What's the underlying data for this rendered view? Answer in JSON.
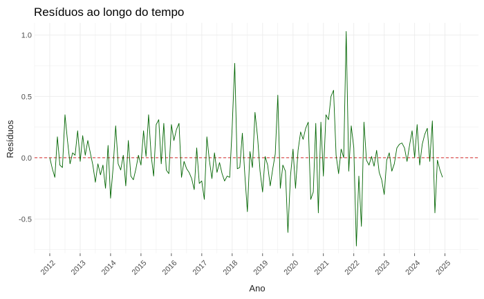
{
  "chart_data": {
    "type": "line",
    "title": "Resíduos ao longo do tempo",
    "xlabel": "Ano",
    "ylabel": "Resíduos",
    "x_ticks": [
      "2012",
      "2013",
      "2014",
      "2015",
      "2016",
      "2017",
      "2018",
      "2019",
      "2020",
      "2021",
      "2022",
      "2023",
      "2024",
      "2025"
    ],
    "y_ticks": [
      "1.0",
      "0.5",
      "0.0",
      "-0.5"
    ],
    "ylim": [
      -0.78,
      1.1
    ],
    "xlim": [
      2011.5,
      2026.1
    ],
    "grid": true,
    "reference_line": {
      "y": 0,
      "style": "dashed",
      "color": "#d62728"
    },
    "colors": {
      "series": "#006400",
      "grid": "#ebebeb",
      "reference": "#d62728"
    },
    "series": [
      {
        "start": 2012.0,
        "step": 0.0833333,
        "values": [
          0.0,
          -0.09,
          -0.16,
          0.17,
          -0.06,
          -0.08,
          0.35,
          0.14,
          -0.05,
          0.04,
          0.02,
          0.22,
          -0.03,
          0.18,
          0.02,
          0.14,
          0.04,
          -0.06,
          -0.2,
          -0.05,
          -0.14,
          -0.06,
          -0.25,
          0.1,
          -0.33,
          -0.08,
          0.26,
          -0.05,
          -0.1,
          0.02,
          -0.23,
          0.14,
          -0.15,
          -0.18,
          -0.09,
          0.02,
          -0.06,
          0.22,
          0.01,
          0.35,
          0.02,
          -0.15,
          0.27,
          0.31,
          -0.05,
          0.28,
          -0.1,
          -0.13,
          0.27,
          0.14,
          0.23,
          0.28,
          -0.16,
          -0.03,
          -0.09,
          -0.12,
          -0.17,
          -0.26,
          0.08,
          -0.21,
          -0.19,
          -0.34,
          0.17,
          -0.02,
          -0.17,
          0.04,
          -0.12,
          -0.04,
          -0.13,
          -0.19,
          -0.15,
          -0.16,
          0.25,
          0.77,
          -0.09,
          -0.08,
          0.2,
          -0.14,
          -0.44,
          0.05,
          -0.08,
          0.37,
          0.17,
          -0.11,
          -0.28,
          0.01,
          -0.06,
          -0.23,
          -0.09,
          0.03,
          0.51,
          -0.25,
          -0.06,
          -0.11,
          -0.61,
          -0.15,
          0.07,
          -0.25,
          0.06,
          0.21,
          0.15,
          0.24,
          0.29,
          -0.34,
          -0.28,
          0.28,
          -0.45,
          0.29,
          -0.15,
          0.35,
          0.31,
          0.5,
          0.55,
          0.02,
          -0.13,
          0.07,
          0.0,
          1.03,
          -0.11,
          0.26,
          0.08,
          -0.72,
          -0.15,
          -0.56,
          0.29,
          -0.02,
          -0.06,
          0.01,
          -0.07,
          0.06,
          -0.12,
          -0.18,
          -0.3,
          -0.02,
          0.04,
          -0.11,
          -0.05,
          0.08,
          0.11,
          0.12,
          0.08,
          -0.03,
          0.1,
          0.22,
          0.0,
          0.27,
          -0.06,
          0.11,
          0.19,
          0.24,
          -0.03,
          0.3,
          -0.45,
          -0.02,
          -0.1,
          -0.16
        ]
      }
    ]
  }
}
